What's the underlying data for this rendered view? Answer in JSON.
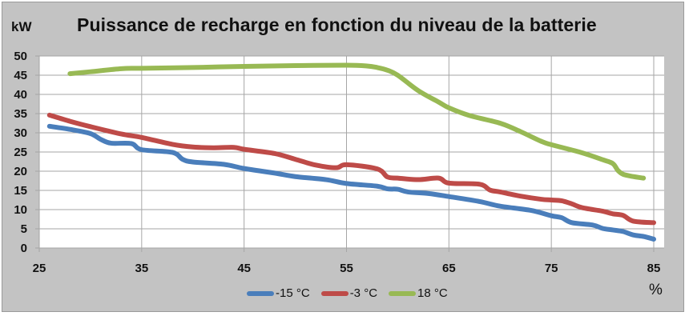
{
  "chart": {
    "title": "Puissance de recharge en fonction du niveau de la batterie",
    "y_unit": "kW",
    "x_unit": "%",
    "colors": {
      "background": "#c3c3c3",
      "plot_background": "#ffffff",
      "grid": "#a6a6a6"
    }
  },
  "legend": [
    {
      "label": "-15 °C",
      "color": "#4a7ebb"
    },
    {
      "label": "-3 °C",
      "color": "#be4b48"
    },
    {
      "label": "18 °C",
      "color": "#98b954"
    }
  ],
  "chart_data": {
    "type": "line",
    "title": "Puissance de recharge en fonction du niveau de la batterie",
    "xlabel": "%",
    "ylabel": "kW",
    "xlim": [
      25,
      85
    ],
    "ylim": [
      0,
      50
    ],
    "x_ticks": [
      25,
      35,
      45,
      55,
      65,
      75,
      85
    ],
    "y_ticks": [
      0,
      5,
      10,
      15,
      20,
      25,
      30,
      35,
      40,
      45,
      50
    ],
    "grid": true,
    "legend_position": "bottom",
    "series": [
      {
        "name": "-15 °C",
        "color": "#4a7ebb",
        "x": [
          26,
          28,
          30,
          31,
          32,
          34,
          35,
          38,
          39,
          40,
          43,
          45,
          48,
          50,
          53,
          55,
          58,
          59,
          60,
          61,
          63,
          65,
          68,
          70,
          73,
          75,
          76,
          77,
          79,
          80,
          81,
          82,
          83,
          84,
          85
        ],
        "y": [
          31.7,
          30.9,
          29.8,
          28.3,
          27.3,
          27.2,
          25.6,
          24.9,
          23.1,
          22.4,
          21.8,
          20.7,
          19.5,
          18.6,
          17.8,
          16.8,
          16.1,
          15.4,
          15.3,
          14.6,
          14.2,
          13.4,
          12.1,
          10.9,
          9.8,
          8.4,
          7.9,
          6.6,
          6.0,
          5.1,
          4.7,
          4.3,
          3.4,
          3.0,
          2.3
        ]
      },
      {
        "name": "-3 °C",
        "color": "#be4b48",
        "x": [
          26,
          28,
          30,
          33,
          35,
          38,
          40,
          42,
          44,
          45,
          48,
          50,
          52,
          54,
          55,
          58,
          59,
          60,
          62,
          64,
          65,
          68,
          69,
          70,
          72,
          74,
          75,
          76,
          77,
          78,
          80,
          81,
          82,
          83,
          85
        ],
        "y": [
          34.6,
          33.0,
          31.6,
          29.7,
          28.8,
          27.0,
          26.3,
          26.1,
          26.2,
          25.7,
          24.6,
          23.1,
          21.6,
          20.9,
          21.7,
          20.6,
          18.5,
          18.2,
          17.8,
          18.2,
          16.9,
          16.6,
          15.1,
          14.6,
          13.5,
          12.7,
          12.5,
          12.3,
          11.5,
          10.5,
          9.6,
          8.9,
          8.5,
          7.0,
          6.6
        ]
      },
      {
        "name": "18 °C",
        "color": "#98b954",
        "x": [
          28,
          30,
          33,
          35,
          40,
          45,
          50,
          55,
          57,
          58,
          59,
          60,
          62,
          64,
          65,
          67,
          70,
          72,
          74,
          75,
          78,
          80,
          81,
          81.5,
          82,
          83,
          84
        ],
        "y": [
          45.4,
          45.9,
          46.7,
          46.8,
          47.0,
          47.3,
          47.5,
          47.6,
          47.4,
          47.0,
          46.3,
          45.0,
          41.0,
          38.0,
          36.5,
          34.5,
          32.5,
          30.3,
          27.8,
          26.9,
          24.8,
          23.0,
          22.0,
          20.2,
          19.2,
          18.6,
          18.2
        ]
      }
    ]
  }
}
